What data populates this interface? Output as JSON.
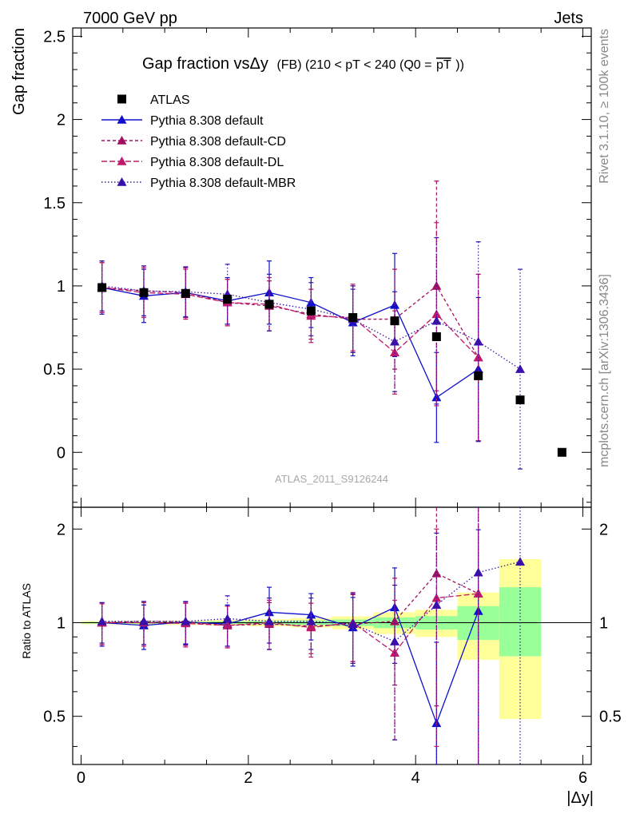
{
  "header": {
    "left": "7000 GeV pp",
    "right": "Jets"
  },
  "side_labels": {
    "rivet": "Rivet 3.1.10, ≥ 100k events",
    "mcplots": "mcplots.cern.ch [arXiv:1306.3436]"
  },
  "chart_data": {
    "type": "scatter",
    "title": "Gap fraction vsΔy",
    "title_suffix": "(FB) (210 < pT < 240 (Q0 =",
    "title_pt": "pT",
    "title_close": "))",
    "watermark": "ATLAS_2011_S9126244",
    "xlabel": "|Δy|",
    "ylabel": "Gap fraction",
    "ratio_ylabel": "Ratio to ATLAS",
    "xlim": [
      -0.1,
      6.1
    ],
    "ylim": [
      -0.33,
      2.55
    ],
    "ratio_ylim": [
      0.35,
      2.35
    ],
    "ratio_log": true,
    "x_ticks": [
      0,
      2,
      4,
      6
    ],
    "y_ticks": [
      0,
      0.5,
      1,
      1.5,
      2,
      2.5
    ],
    "ratio_ticks": [
      0.5,
      1,
      2
    ],
    "legend_position": "top-left",
    "data": {
      "name": "ATLAS",
      "color": "#000000",
      "x": [
        0.25,
        0.75,
        1.25,
        1.75,
        2.25,
        2.75,
        3.25,
        3.75,
        4.25,
        4.75,
        5.25,
        5.75
      ],
      "y": [
        0.99,
        0.96,
        0.955,
        0.92,
        0.89,
        0.85,
        0.81,
        0.79,
        0.695,
        0.46,
        0.315,
        0.0
      ]
    },
    "ratio_bands": [
      {
        "xlo": 0.0,
        "xhi": 0.5,
        "g": [
          0.994,
          1.006
        ],
        "yl": [
          0.988,
          1.012
        ]
      },
      {
        "xlo": 0.5,
        "xhi": 1.0,
        "g": [
          0.993,
          1.007
        ],
        "yl": [
          0.986,
          1.014
        ]
      },
      {
        "xlo": 1.0,
        "xhi": 1.5,
        "g": [
          0.992,
          1.008
        ],
        "yl": [
          0.984,
          1.016
        ]
      },
      {
        "xlo": 1.5,
        "xhi": 2.0,
        "g": [
          0.99,
          1.01
        ],
        "yl": [
          0.98,
          1.02
        ]
      },
      {
        "xlo": 2.0,
        "xhi": 2.5,
        "g": [
          0.987,
          1.013
        ],
        "yl": [
          0.974,
          1.026
        ]
      },
      {
        "xlo": 2.5,
        "xhi": 3.0,
        "g": [
          0.983,
          1.017
        ],
        "yl": [
          0.966,
          1.034
        ]
      },
      {
        "xlo": 3.0,
        "xhi": 3.5,
        "g": [
          0.976,
          1.024
        ],
        "yl": [
          0.952,
          1.048
        ]
      },
      {
        "xlo": 3.5,
        "xhi": 4.0,
        "g": [
          0.96,
          1.04
        ],
        "yl": [
          0.92,
          1.08
        ]
      },
      {
        "xlo": 4.0,
        "xhi": 4.5,
        "g": [
          0.95,
          1.05
        ],
        "yl": [
          0.9,
          1.1
        ]
      },
      {
        "xlo": 4.5,
        "xhi": 5.0,
        "g": [
          0.88,
          1.13
        ],
        "yl": [
          0.76,
          1.25
        ]
      },
      {
        "xlo": 5.0,
        "xhi": 5.5,
        "g": [
          0.78,
          1.3
        ],
        "yl": [
          0.49,
          1.6
        ]
      }
    ],
    "series": [
      {
        "name": "Pythia 8.308 default",
        "color": "#1010cc",
        "dash": "solid",
        "x": [
          0.25,
          0.75,
          1.25,
          1.75,
          2.25,
          2.75,
          3.25,
          3.75,
          4.25,
          4.75
        ],
        "y": [
          0.99,
          0.94,
          0.96,
          0.91,
          0.96,
          0.9,
          0.78,
          0.885,
          0.33,
          0.5
        ],
        "err": [
          0.16,
          0.16,
          0.15,
          0.14,
          0.19,
          0.15,
          0.2,
          0.31,
          0.27,
          0.43
        ],
        "ratio": [
          1.0,
          0.98,
          1.005,
          0.99,
          1.08,
          1.06,
          0.965,
          1.12,
          0.475,
          1.09
        ],
        "ratio_err": [
          0.16,
          0.16,
          0.15,
          0.15,
          0.22,
          0.18,
          0.24,
          0.38,
          0.39,
          0.9
        ]
      },
      {
        "name": "Pythia 8.308 default-CD",
        "color": "#a01060",
        "dash": "4,3",
        "x": [
          0.25,
          0.75,
          1.25,
          1.75,
          2.25,
          2.75,
          3.25,
          3.75,
          4.25,
          4.75
        ],
        "y": [
          0.99,
          0.97,
          0.96,
          0.9,
          0.88,
          0.83,
          0.8,
          0.8,
          1.0,
          0.57
        ],
        "err": [
          0.15,
          0.15,
          0.15,
          0.14,
          0.15,
          0.15,
          0.2,
          0.3,
          0.63,
          0.5
        ],
        "ratio": [
          1.0,
          1.01,
          1.005,
          0.98,
          0.99,
          0.975,
          0.99,
          1.01,
          1.44,
          1.24
        ],
        "ratio_err": [
          0.15,
          0.16,
          0.16,
          0.15,
          0.17,
          0.18,
          0.24,
          0.38,
          0.9,
          1.1
        ]
      },
      {
        "name": "Pythia 8.308 default-DL",
        "color": "#c0186a",
        "dash": "7,3",
        "x": [
          0.25,
          0.75,
          1.25,
          1.75,
          2.25,
          2.75,
          3.25,
          3.75,
          4.25,
          4.75
        ],
        "y": [
          0.99,
          0.96,
          0.95,
          0.9,
          0.89,
          0.82,
          0.81,
          0.6,
          0.83,
          0.57
        ],
        "err": [
          0.15,
          0.15,
          0.15,
          0.14,
          0.16,
          0.16,
          0.2,
          0.25,
          0.55,
          0.5
        ],
        "ratio": [
          1.0,
          1.0,
          0.995,
          0.98,
          1.0,
          0.965,
          1.0,
          0.8,
          1.2,
          1.24
        ],
        "ratio_err": [
          0.15,
          0.16,
          0.16,
          0.15,
          0.18,
          0.19,
          0.25,
          0.38,
          0.8,
          1.1
        ]
      },
      {
        "name": "Pythia 8.308 default-MBR",
        "color": "#3a10aa",
        "dash": "1.5,2.5",
        "x": [
          0.25,
          0.75,
          1.25,
          1.75,
          2.25,
          2.75,
          3.25,
          3.75,
          4.25,
          4.75,
          5.25
        ],
        "y": [
          1.0,
          0.97,
          0.965,
          0.95,
          0.9,
          0.86,
          0.8,
          0.665,
          0.79,
          0.665,
          0.5
        ],
        "err": [
          0.15,
          0.15,
          0.15,
          0.18,
          0.17,
          0.16,
          0.2,
          0.3,
          0.5,
          0.6,
          0.6
        ],
        "ratio": [
          1.01,
          1.01,
          1.01,
          1.03,
          1.01,
          1.01,
          0.99,
          0.87,
          1.14,
          1.45,
          1.57
        ],
        "ratio_err": [
          0.15,
          0.16,
          0.16,
          0.19,
          0.19,
          0.19,
          0.25,
          0.45,
          0.8,
          1.4,
          1.9
        ]
      }
    ]
  }
}
